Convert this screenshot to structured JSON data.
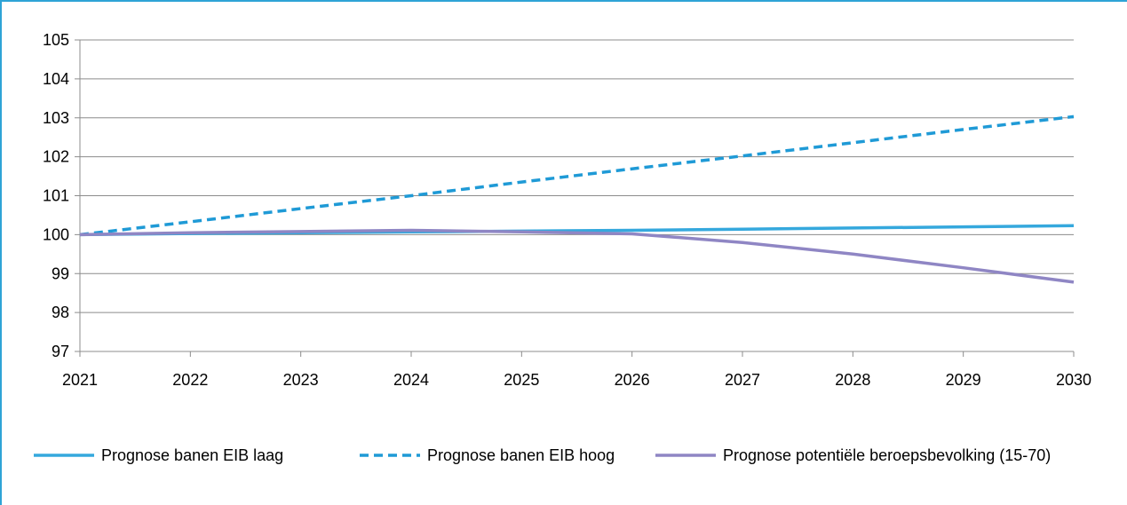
{
  "chart_data": {
    "type": "line",
    "title": "",
    "xlabel": "",
    "ylabel": "",
    "x": [
      "2021",
      "2022",
      "2023",
      "2024",
      "2025",
      "2026",
      "2027",
      "2028",
      "2029",
      "2030"
    ],
    "ylim": [
      97,
      105
    ],
    "yticks": [
      97,
      98,
      99,
      100,
      101,
      102,
      103,
      104,
      105
    ],
    "grid": true,
    "legend_position": "bottom",
    "series": [
      {
        "name": "Prognose banen EIB laag",
        "color": "#35a8dd",
        "dash": "solid",
        "values": [
          100.0,
          100.03,
          100.05,
          100.07,
          100.09,
          100.11,
          100.14,
          100.17,
          100.2,
          100.23
        ]
      },
      {
        "name": "Prognose banen EIB hoog",
        "color": "#1f9ad6",
        "dash": "dashed",
        "values": [
          100.0,
          100.33,
          100.67,
          101.0,
          101.35,
          101.69,
          102.02,
          102.36,
          102.7,
          103.03
        ]
      },
      {
        "name": "Prognose potentiële beroepsbevolking (15-70)",
        "color": "#8f86c4",
        "dash": "solid",
        "values": [
          100.0,
          100.05,
          100.08,
          100.11,
          100.07,
          100.02,
          99.8,
          99.5,
          99.15,
          98.78
        ]
      }
    ]
  }
}
